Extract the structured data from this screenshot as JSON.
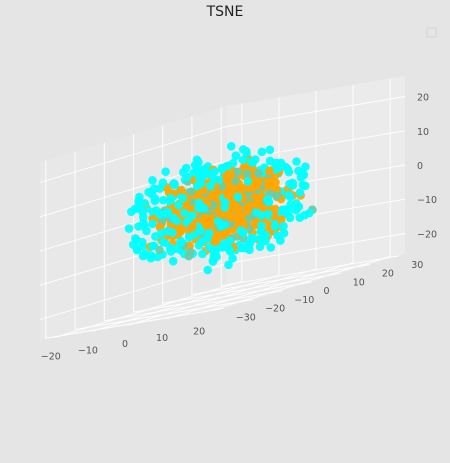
{
  "chart_data": {
    "type": "scatter",
    "projection": "3d",
    "title": "TSNE",
    "xlabel": "",
    "ylabel": "",
    "zlabel": "",
    "legend": {
      "position": "top-right",
      "entries": []
    },
    "grid": true,
    "xlim": [
      -24,
      24
    ],
    "ylim": [
      -32,
      32
    ],
    "zlim": [
      -26,
      26
    ],
    "x_ticks": [
      -20,
      -10,
      0,
      10,
      20
    ],
    "y_ticks": [
      -30,
      -20,
      -10,
      0,
      10,
      20,
      30
    ],
    "z_ticks": [
      -20,
      -10,
      0,
      10,
      20
    ],
    "series": [
      {
        "color": "#ffa500",
        "points": "approximately 3000 points filling a roughly spherical cloud with x, y, z in about [-20, 20]"
      },
      {
        "color": "#00ffff",
        "points": "approximately 1500 points, concentrated on the outer shell of the cloud, x, y, z in about [-20, 20]"
      },
      {
        "color": "#66cdaa",
        "points": "approximately 400 points mixed through the cloud"
      }
    ]
  }
}
